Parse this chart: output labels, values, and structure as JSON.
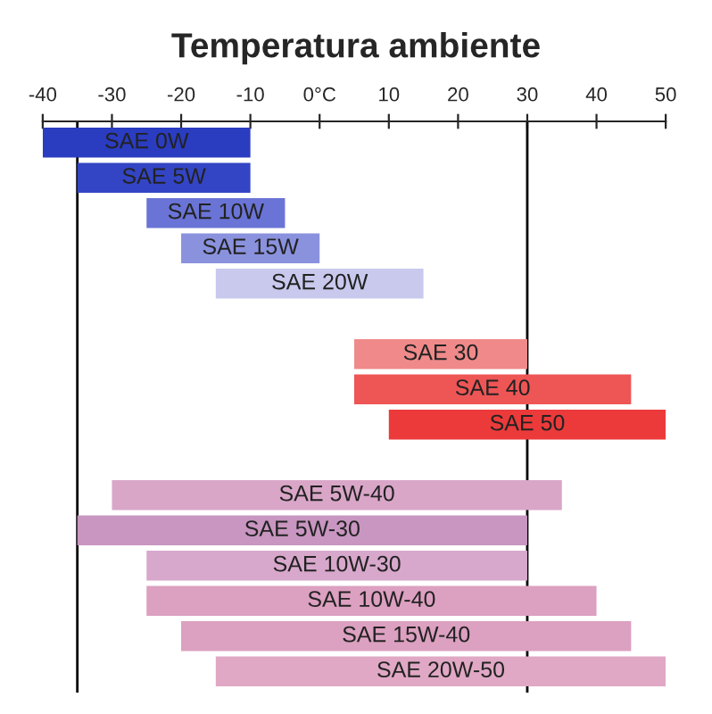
{
  "chart_data": {
    "type": "bar",
    "orientation": "horizontal",
    "title": "Temperatura ambiente",
    "categories": [
      "SAE 0W",
      "SAE 5W",
      "SAE 10W",
      "SAE 15W",
      "SAE 20W",
      null,
      "SAE 30",
      "SAE 40",
      "SAE 50",
      null,
      "SAE 5W-40",
      "SAE 5W-30",
      "SAE 10W-30",
      "SAE 10W-40",
      "SAE 15W-40",
      "SAE 20W-50"
    ],
    "base": [
      -40,
      -35,
      -25,
      -20,
      -15,
      null,
      5,
      5,
      10,
      null,
      -30,
      -35,
      -25,
      -25,
      -20,
      -15
    ],
    "values": [
      30,
      25,
      20,
      20,
      30,
      null,
      25,
      40,
      40,
      null,
      65,
      65,
      55,
      65,
      65,
      65
    ],
    "colors": [
      "#2a3cc0",
      "#3345c4",
      "#6a74d6",
      "#8a92de",
      "#c9c9ee",
      null,
      "#f08a8a",
      "#ee5555",
      "#ec3a3a",
      null,
      "#d9a6c8",
      "#c896c0",
      "#d8a8cc",
      "#dca0c0",
      "#dca0c0",
      "#e0a8c4"
    ],
    "xlim": [
      -40,
      50
    ],
    "xticks": [
      -40,
      -30,
      -20,
      -10,
      {
        "value": 0,
        "label": "0°C"
      },
      10,
      20,
      30,
      40,
      50
    ],
    "ref_lines": [
      {
        "axis": "x",
        "value": -35,
        "color": "#000000"
      },
      {
        "axis": "x",
        "value": 30,
        "color": "#000000"
      }
    ],
    "tick_labels": "x",
    "grid": false,
    "legend": false
  }
}
